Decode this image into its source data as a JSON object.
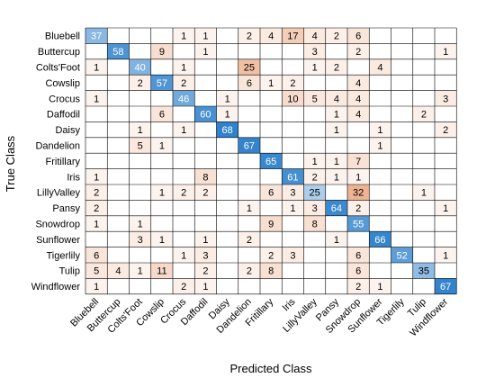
{
  "chart_data": {
    "type": "heatmap",
    "title": "",
    "xlabel": "Predicted Class",
    "ylabel": "True Class",
    "classes": [
      "Bluebell",
      "Buttercup",
      "Colts'Foot",
      "Cowslip",
      "Crocus",
      "Daffodil",
      "Daisy",
      "Dandelion",
      "Fritillary",
      "Iris",
      "LillyValley",
      "Pansy",
      "Snowdrop",
      "Sunflower",
      "Tigerlily",
      "Tulip",
      "Windflower"
    ],
    "matrix": [
      [
        37,
        0,
        0,
        0,
        1,
        1,
        0,
        2,
        4,
        17,
        4,
        2,
        6,
        0,
        0,
        0,
        0
      ],
      [
        0,
        58,
        0,
        9,
        0,
        1,
        0,
        0,
        0,
        0,
        3,
        0,
        2,
        0,
        0,
        0,
        1
      ],
      [
        1,
        0,
        40,
        0,
        1,
        0,
        0,
        25,
        0,
        0,
        1,
        2,
        0,
        4,
        0,
        0,
        0
      ],
      [
        0,
        0,
        2,
        57,
        2,
        0,
        0,
        6,
        1,
        2,
        0,
        0,
        4,
        0,
        0,
        0,
        0
      ],
      [
        1,
        0,
        0,
        0,
        46,
        0,
        1,
        0,
        0,
        10,
        5,
        4,
        4,
        0,
        0,
        0,
        3
      ],
      [
        0,
        0,
        0,
        6,
        0,
        60,
        1,
        0,
        0,
        0,
        0,
        1,
        4,
        0,
        0,
        2,
        0
      ],
      [
        0,
        0,
        1,
        0,
        1,
        0,
        68,
        0,
        0,
        0,
        0,
        1,
        0,
        1,
        0,
        0,
        2
      ],
      [
        0,
        0,
        5,
        1,
        0,
        0,
        0,
        67,
        0,
        0,
        0,
        0,
        0,
        1,
        0,
        0,
        0
      ],
      [
        0,
        0,
        0,
        0,
        0,
        0,
        0,
        0,
        65,
        0,
        1,
        1,
        7,
        0,
        0,
        0,
        0
      ],
      [
        1,
        0,
        0,
        0,
        0,
        8,
        0,
        0,
        0,
        61,
        2,
        1,
        1,
        0,
        0,
        0,
        0
      ],
      [
        2,
        0,
        0,
        1,
        2,
        2,
        0,
        0,
        6,
        3,
        25,
        0,
        32,
        0,
        0,
        1,
        0
      ],
      [
        2,
        0,
        0,
        0,
        0,
        0,
        0,
        1,
        0,
        1,
        3,
        64,
        2,
        0,
        0,
        0,
        1
      ],
      [
        1,
        0,
        1,
        0,
        0,
        0,
        0,
        0,
        9,
        0,
        8,
        0,
        55,
        0,
        0,
        0,
        0
      ],
      [
        0,
        0,
        3,
        1,
        0,
        1,
        0,
        2,
        0,
        0,
        0,
        1,
        0,
        66,
        0,
        0,
        0
      ],
      [
        6,
        0,
        0,
        0,
        1,
        3,
        0,
        0,
        2,
        3,
        0,
        0,
        6,
        0,
        52,
        0,
        1
      ],
      [
        5,
        4,
        1,
        11,
        0,
        2,
        0,
        2,
        8,
        0,
        0,
        0,
        6,
        0,
        0,
        35,
        0
      ],
      [
        1,
        0,
        0,
        0,
        2,
        1,
        0,
        0,
        0,
        0,
        0,
        0,
        2,
        1,
        0,
        0,
        67
      ]
    ],
    "colors": {
      "diagonal_high": "#1f78c8",
      "offdiagonal_high": "#e6905f",
      "grid": "#000000",
      "text_dark": "#000000",
      "text_light": "#ffffff"
    }
  }
}
